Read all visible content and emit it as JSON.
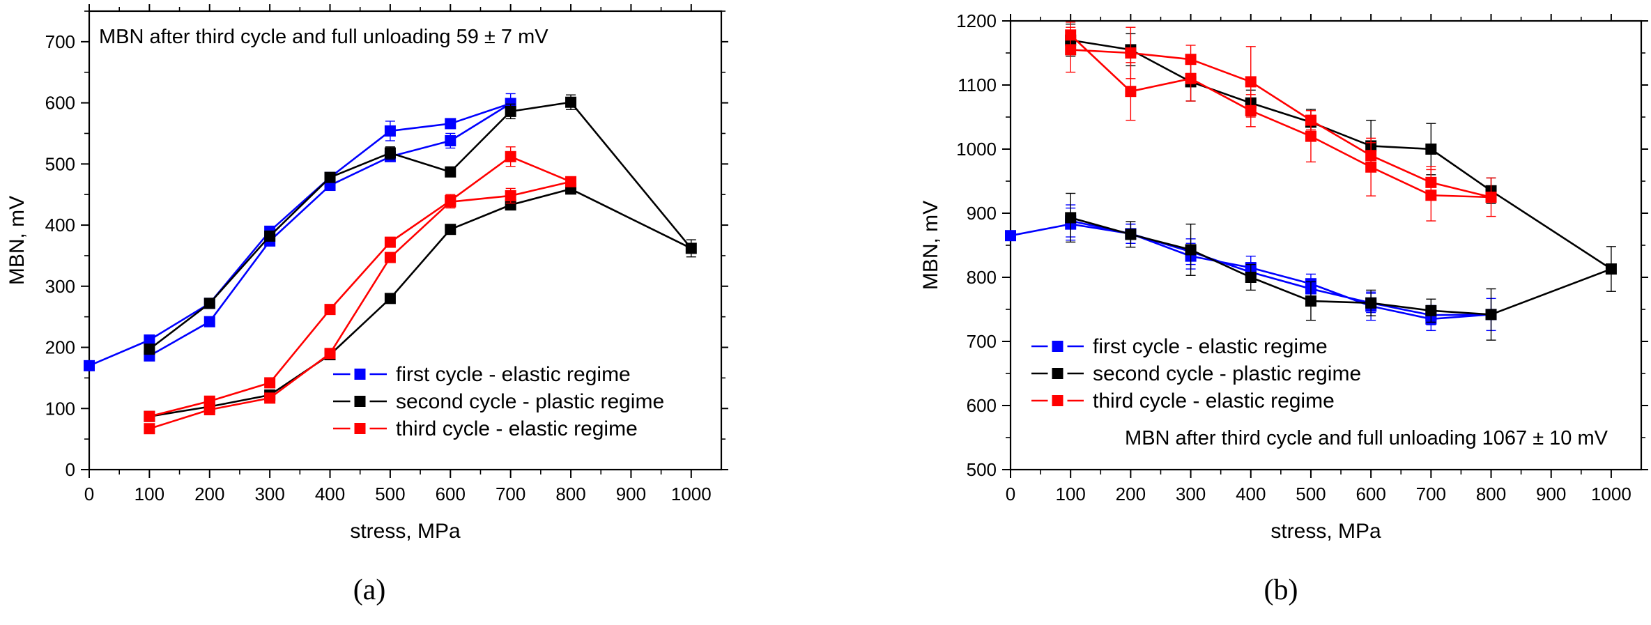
{
  "chart_data": [
    {
      "type": "line",
      "panel_label": "(a)",
      "annotation": "MBN after third cycle and full unloading 59 ± 7 mV",
      "xlabel": "stress, MPa",
      "ylabel": "MBN, mV",
      "xlim": [
        0,
        1050
      ],
      "ylim": [
        0,
        750
      ],
      "xticks": [
        0,
        100,
        200,
        300,
        400,
        500,
        600,
        700,
        800,
        900,
        1000
      ],
      "yticks": [
        0,
        100,
        200,
        300,
        400,
        500,
        600,
        700
      ],
      "legend_position": "bottom-right",
      "series": [
        {
          "name": "first cycle - elastic regime",
          "color": "#0000ff",
          "x": [
            0,
            100,
            200,
            300,
            400,
            500,
            600,
            700,
            600,
            500,
            400,
            300,
            200,
            100
          ],
          "y": [
            170,
            212,
            272,
            390,
            478,
            554,
            566,
            599,
            538,
            512,
            465,
            374,
            242,
            186
          ],
          "err": [
            0,
            5,
            6,
            6,
            8,
            16,
            8,
            16,
            12,
            8,
            8,
            6,
            5,
            5
          ]
        },
        {
          "name": "second cycle - plastic regime",
          "color": "#000000",
          "x": [
            100,
            200,
            300,
            400,
            500,
            600,
            700,
            800,
            1000,
            800,
            700,
            600,
            500,
            400,
            300,
            200,
            100
          ],
          "y": [
            197,
            272,
            382,
            478,
            518,
            487,
            586,
            601,
            362,
            459,
            433,
            393,
            280,
            188,
            122,
            103,
            87
          ],
          "err": [
            5,
            6,
            6,
            8,
            10,
            8,
            12,
            12,
            14,
            8,
            8,
            6,
            6,
            5,
            5,
            5,
            5
          ]
        },
        {
          "name": "third cycle - elastic regime",
          "color": "#ff0000",
          "x": [
            100,
            200,
            300,
            400,
            500,
            600,
            700,
            800,
            700,
            600,
            500,
            400,
            300,
            200,
            100
          ],
          "y": [
            87,
            112,
            142,
            262,
            372,
            440,
            512,
            471,
            448,
            438,
            347,
            190,
            117,
            98,
            67
          ],
          "err": [
            5,
            5,
            5,
            6,
            8,
            10,
            16,
            8,
            12,
            10,
            8,
            6,
            5,
            5,
            5
          ]
        }
      ]
    },
    {
      "type": "line",
      "panel_label": "(b)",
      "annotation": "MBN after third cycle and full unloading 1067 ± 10 mV",
      "xlabel": "stress, MPa",
      "ylabel": "MBN, mV",
      "xlim": [
        0,
        1050
      ],
      "ylim": [
        500,
        1200
      ],
      "xticks": [
        0,
        100,
        200,
        300,
        400,
        500,
        600,
        700,
        800,
        900,
        1000
      ],
      "yticks": [
        500,
        600,
        700,
        800,
        900,
        1000,
        1100,
        1200
      ],
      "legend_position": "bottom-left",
      "series": [
        {
          "name": "first cycle - elastic regime",
          "color": "#0000ff",
          "x": [
            0,
            100,
            200,
            300,
            400,
            500,
            600,
            700,
            800,
            700,
            600,
            500,
            400,
            300,
            200,
            100
          ],
          "y": [
            865,
            883,
            868,
            833,
            815,
            790,
            755,
            735,
            742,
            741,
            760,
            782,
            808,
            840,
            868,
            888
          ],
          "err": [
            0,
            25,
            15,
            20,
            18,
            15,
            22,
            18,
            25,
            15,
            15,
            15,
            15,
            20,
            15,
            25
          ]
        },
        {
          "name": "second cycle - plastic regime",
          "color": "#000000",
          "x": [
            100,
            200,
            300,
            400,
            500,
            600,
            700,
            800,
            1000,
            800,
            700,
            600,
            500,
            400,
            300,
            200,
            100
          ],
          "y": [
            1170,
            1155,
            1105,
            1072,
            1042,
            1005,
            1000,
            935,
            813,
            742,
            748,
            760,
            763,
            800,
            843,
            867,
            893
          ],
          "err": [
            25,
            25,
            30,
            20,
            20,
            40,
            40,
            20,
            35,
            40,
            18,
            20,
            30,
            20,
            40,
            20,
            38
          ]
        },
        {
          "name": "third cycle - elastic regime",
          "color": "#ff0000",
          "x": [
            100,
            200,
            300,
            400,
            500,
            600,
            700,
            800,
            700,
            600,
            500,
            400,
            300,
            200,
            100
          ],
          "y": [
            1155,
            1150,
            1140,
            1105,
            1045,
            990,
            948,
            925,
            928,
            972,
            1020,
            1060,
            1110,
            1090,
            1178
          ],
          "err": [
            35,
            40,
            22,
            55,
            15,
            20,
            25,
            30,
            40,
            45,
            40,
            25,
            35,
            45,
            20
          ]
        }
      ]
    }
  ]
}
